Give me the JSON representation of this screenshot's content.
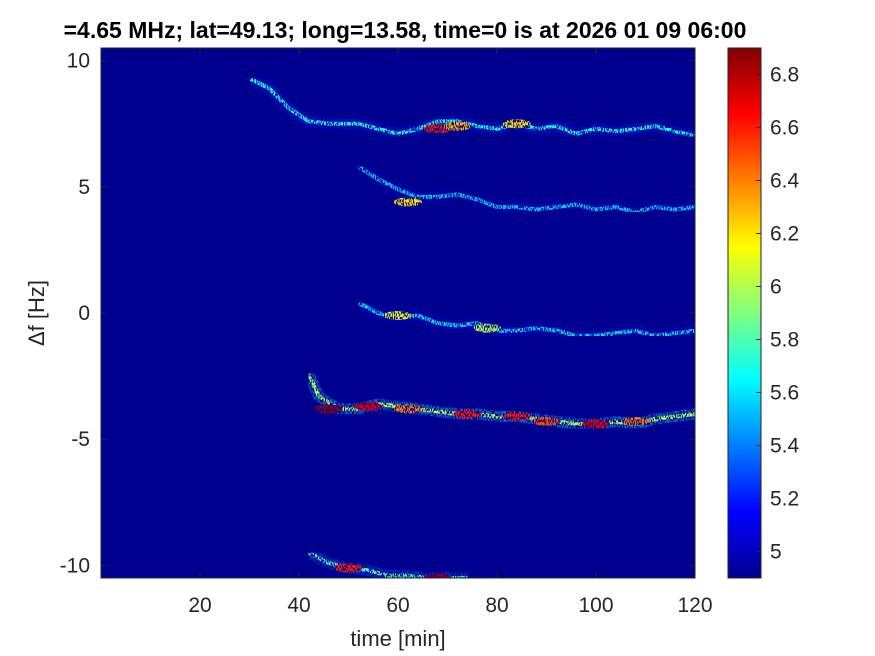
{
  "chart_data": {
    "type": "heatmap",
    "title": "=4.65 MHz;  lat=49.13; long=13.58, time=0 is at 2026 01 09 06:00",
    "xlabel": "time [min]",
    "ylabel": "Δf [Hz]",
    "xlim": [
      0,
      120
    ],
    "ylim": [
      -10.5,
      10.5
    ],
    "xticks": [
      20,
      40,
      60,
      80,
      100,
      120
    ],
    "xtick_labels": [
      "20",
      "40",
      "60",
      "80",
      "100",
      "120"
    ],
    "yticks": [
      -10,
      -5,
      0,
      5,
      10
    ],
    "ytick_labels": [
      "-10",
      "-5",
      "0",
      "5",
      "10"
    ],
    "colormap": "jet",
    "background_color": "#00008f",
    "colorbar": {
      "range": [
        4.9,
        6.9
      ],
      "ticks": [
        5,
        5.2,
        5.4,
        5.6,
        5.8,
        6,
        6.2,
        6.4,
        6.6,
        6.8
      ],
      "tick_labels": [
        "5",
        "5.2",
        "5.4",
        "5.6",
        "5.8",
        "6",
        "6.2",
        "6.4",
        "6.6",
        "6.8"
      ]
    },
    "traces": [
      {
        "name": "",
        "points": [
          [
            30,
            9.3
          ],
          [
            34,
            8.9
          ],
          [
            38,
            8.1
          ],
          [
            42,
            7.6
          ],
          [
            46,
            7.5
          ],
          [
            52,
            7.5
          ],
          [
            56,
            7.3
          ],
          [
            60,
            7.1
          ],
          [
            64,
            7.3
          ],
          [
            68,
            7.6
          ],
          [
            72,
            7.6
          ],
          [
            76,
            7.4
          ],
          [
            80,
            7.3
          ],
          [
            84,
            7.5
          ],
          [
            88,
            7.3
          ],
          [
            92,
            7.4
          ],
          [
            96,
            7.1
          ],
          [
            100,
            7.3
          ],
          [
            104,
            7.2
          ],
          [
            108,
            7.3
          ],
          [
            112,
            7.4
          ],
          [
            116,
            7.2
          ],
          [
            120,
            7.0
          ]
        ],
        "intensity": 5.7,
        "peaks": [
          [
            68,
            7.3,
            6.6
          ],
          [
            72,
            7.4,
            6.3
          ],
          [
            84,
            7.5,
            6.2
          ]
        ]
      },
      {
        "name": "",
        "points": [
          [
            52,
            5.8
          ],
          [
            56,
            5.3
          ],
          [
            60,
            4.9
          ],
          [
            64,
            4.6
          ],
          [
            68,
            4.6
          ],
          [
            72,
            4.7
          ],
          [
            76,
            4.5
          ],
          [
            80,
            4.2
          ],
          [
            84,
            4.2
          ],
          [
            88,
            4.1
          ],
          [
            92,
            4.2
          ],
          [
            96,
            4.3
          ],
          [
            100,
            4.1
          ],
          [
            104,
            4.2
          ],
          [
            108,
            4.0
          ],
          [
            112,
            4.2
          ],
          [
            116,
            4.1
          ],
          [
            120,
            4.2
          ]
        ],
        "intensity": 5.55,
        "peaks": [
          [
            62,
            4.4,
            6.2
          ]
        ]
      },
      {
        "name": "",
        "points": [
          [
            52,
            0.4
          ],
          [
            56,
            0.0
          ],
          [
            60,
            -0.2
          ],
          [
            64,
            -0.1
          ],
          [
            68,
            -0.4
          ],
          [
            72,
            -0.5
          ],
          [
            76,
            -0.4
          ],
          [
            80,
            -0.7
          ],
          [
            84,
            -0.7
          ],
          [
            88,
            -0.6
          ],
          [
            92,
            -0.7
          ],
          [
            96,
            -0.9
          ],
          [
            100,
            -0.9
          ],
          [
            104,
            -0.8
          ],
          [
            108,
            -0.7
          ],
          [
            112,
            -0.9
          ],
          [
            116,
            -0.8
          ],
          [
            120,
            -0.7
          ]
        ],
        "intensity": 5.6,
        "peaks": [
          [
            60,
            -0.1,
            6.1
          ],
          [
            78,
            -0.6,
            6.0
          ]
        ]
      },
      {
        "name": "",
        "points": [
          [
            42,
            -2.4
          ],
          [
            44,
            -3.3
          ],
          [
            48,
            -3.8
          ],
          [
            52,
            -3.8
          ],
          [
            56,
            -3.6
          ],
          [
            60,
            -3.7
          ],
          [
            64,
            -3.8
          ],
          [
            68,
            -3.9
          ],
          [
            72,
            -4.0
          ],
          [
            76,
            -4.0
          ],
          [
            80,
            -4.1
          ],
          [
            84,
            -4.1
          ],
          [
            88,
            -4.2
          ],
          [
            92,
            -4.3
          ],
          [
            96,
            -4.4
          ],
          [
            100,
            -4.4
          ],
          [
            104,
            -4.3
          ],
          [
            108,
            -4.4
          ],
          [
            112,
            -4.2
          ],
          [
            116,
            -4.1
          ],
          [
            120,
            -4.0
          ]
        ],
        "intensity": 6.0,
        "peaks": [
          [
            46,
            -3.8,
            6.85
          ],
          [
            54,
            -3.7,
            6.7
          ],
          [
            62,
            -3.8,
            6.4
          ],
          [
            74,
            -4.0,
            6.6
          ],
          [
            84,
            -4.1,
            6.6
          ],
          [
            90,
            -4.3,
            6.5
          ],
          [
            100,
            -4.4,
            6.7
          ],
          [
            108,
            -4.3,
            6.4
          ]
        ]
      },
      {
        "name": "",
        "points": [
          [
            42,
            -9.5
          ],
          [
            46,
            -9.9
          ],
          [
            50,
            -10.1
          ],
          [
            54,
            -10.2
          ],
          [
            58,
            -10.4
          ],
          [
            62,
            -10.4
          ],
          [
            66,
            -10.5
          ],
          [
            70,
            -10.5
          ],
          [
            74,
            -10.5
          ]
        ],
        "intensity": 5.8,
        "peaks": [
          [
            50,
            -10.1,
            6.6
          ],
          [
            68,
            -10.5,
            6.8
          ]
        ]
      }
    ]
  }
}
